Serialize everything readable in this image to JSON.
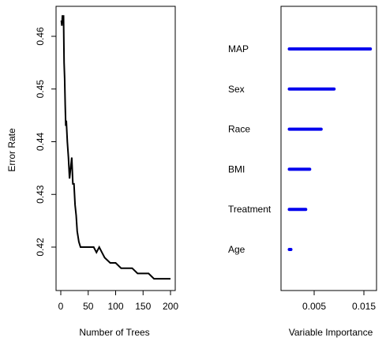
{
  "chart_data": [
    {
      "type": "line",
      "title": "",
      "xlabel": "Number of Trees",
      "ylabel": "Error Rate",
      "xlim": [
        0,
        200
      ],
      "ylim": [
        0.412,
        0.465
      ],
      "xticks": [
        0,
        50,
        100,
        150,
        200
      ],
      "yticks": [
        0.42,
        0.43,
        0.44,
        0.45,
        0.46
      ],
      "xtick_labels": [
        "0",
        "50",
        "100",
        "150",
        "200"
      ],
      "ytick_labels": [
        "0.42",
        "0.43",
        "0.44",
        "0.45",
        "0.46"
      ],
      "grid": false,
      "color": "#000000",
      "series": [
        {
          "x": [
            1,
            2,
            3,
            4,
            5,
            6,
            7,
            8,
            9,
            10,
            12,
            14,
            16,
            18,
            20,
            22,
            24,
            26,
            28,
            30,
            33,
            36,
            40,
            45,
            50,
            55,
            60,
            65,
            70,
            75,
            80,
            90,
            100,
            110,
            120,
            130,
            140,
            150,
            160,
            170,
            180,
            190,
            200
          ],
          "y": [
            0.463,
            0.462,
            0.464,
            0.463,
            0.464,
            0.455,
            0.452,
            0.447,
            0.443,
            0.444,
            0.44,
            0.437,
            0.433,
            0.435,
            0.437,
            0.432,
            0.432,
            0.428,
            0.426,
            0.423,
            0.421,
            0.42,
            0.42,
            0.42,
            0.42,
            0.42,
            0.42,
            0.419,
            0.42,
            0.419,
            0.418,
            0.417,
            0.417,
            0.416,
            0.416,
            0.416,
            0.415,
            0.415,
            0.415,
            0.414,
            0.414,
            0.414,
            0.414
          ]
        }
      ]
    },
    {
      "type": "bar",
      "orientation": "horizontal",
      "title": "",
      "xlabel": "Variable Importance",
      "xlim": [
        -0.0002,
        0.0163
      ],
      "xticks": [
        0.005,
        0.015
      ],
      "xtick_labels": [
        "0.005",
        "0.015"
      ],
      "grid": false,
      "color": "#0000ee",
      "categories": [
        "MAP",
        "Sex",
        "Race",
        "BMI",
        "Treatment",
        "Age"
      ],
      "values": [
        0.0163,
        0.009,
        0.0064,
        0.0041,
        0.0033,
        0.0003
      ]
    }
  ]
}
